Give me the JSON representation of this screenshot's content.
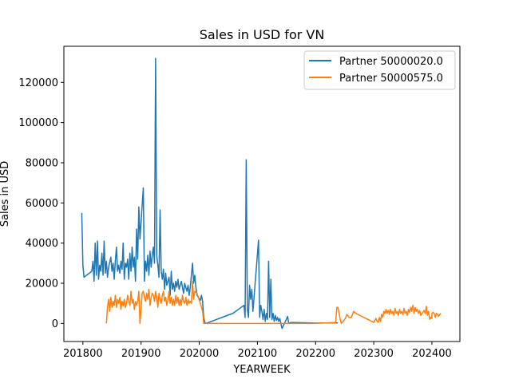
{
  "chart_data": {
    "type": "line",
    "title": "Sales in USD for VN",
    "xlabel": "YEARWEEK",
    "ylabel": "Sales in USD",
    "xlim": [
      201735,
      202425
    ],
    "ylim": [
      -9000,
      138000
    ],
    "xticks": [
      201800,
      201900,
      202000,
      202100,
      202200,
      202300,
      202400
    ],
    "yticks": [
      0,
      20000,
      40000,
      60000,
      80000,
      100000,
      120000
    ],
    "grid": false,
    "legend_position": "top-right",
    "series": [
      {
        "name": "Partner 50000020.0",
        "color": "#1f77b4",
        "points": [
          [
            201751,
            55000
          ],
          [
            201752,
            29000
          ],
          [
            201753,
            23000
          ],
          [
            201808,
            26000
          ],
          [
            201809,
            31000
          ],
          [
            201810,
            21000
          ],
          [
            201811,
            40000
          ],
          [
            201812,
            24000
          ],
          [
            201813,
            41000
          ],
          [
            201814,
            22000
          ],
          [
            201815,
            29000
          ],
          [
            201816,
            26000
          ],
          [
            201817,
            35000
          ],
          [
            201818,
            24000
          ],
          [
            201819,
            41000
          ],
          [
            201820,
            25000
          ],
          [
            201821,
            31000
          ],
          [
            201822,
            23000
          ],
          [
            201823,
            28000
          ],
          [
            201825,
            33000
          ],
          [
            201826,
            26000
          ],
          [
            201827,
            30000
          ],
          [
            201828,
            22000
          ],
          [
            201829,
            31000
          ],
          [
            201830,
            38000
          ],
          [
            201831,
            26000
          ],
          [
            201832,
            29000
          ],
          [
            201833,
            25000
          ],
          [
            201834,
            31000
          ],
          [
            201835,
            27000
          ],
          [
            201836,
            40000
          ],
          [
            201837,
            22000
          ],
          [
            201838,
            30000
          ],
          [
            201839,
            28000
          ],
          [
            201840,
            32000
          ],
          [
            201841,
            22000
          ],
          [
            201842,
            35000
          ],
          [
            201843,
            26000
          ],
          [
            201844,
            38000
          ],
          [
            201845,
            28000
          ],
          [
            201846,
            33000
          ],
          [
            201847,
            21000
          ],
          [
            201848,
            47000
          ],
          [
            201849,
            32000
          ],
          [
            201850,
            58000
          ],
          [
            201851,
            42000
          ],
          [
            201902,
            67500
          ],
          [
            201903,
            21000
          ],
          [
            201904,
            31000
          ],
          [
            201905,
            26000
          ],
          [
            201906,
            34000
          ],
          [
            201907,
            24000
          ],
          [
            201908,
            36000
          ],
          [
            201909,
            28000
          ],
          [
            201910,
            34000
          ],
          [
            201911,
            38000
          ],
          [
            201912,
            30000
          ],
          [
            201913,
            132000
          ],
          [
            201914,
            34000
          ],
          [
            201915,
            29000
          ],
          [
            201916,
            23000
          ],
          [
            201917,
            56500
          ],
          [
            201918,
            26000
          ],
          [
            201919,
            22000
          ],
          [
            201920,
            27000
          ],
          [
            201921,
            17000
          ],
          [
            201922,
            25000
          ],
          [
            201923,
            19000
          ],
          [
            201924,
            21000
          ],
          [
            201925,
            23000
          ],
          [
            201926,
            14000
          ],
          [
            201927,
            26000
          ],
          [
            201928,
            17000
          ],
          [
            201929,
            20000
          ],
          [
            201930,
            16000
          ],
          [
            201931,
            21000
          ],
          [
            201932,
            18000
          ],
          [
            201933,
            22000
          ],
          [
            201934,
            17000
          ],
          [
            201935,
            19000
          ],
          [
            201936,
            21000
          ],
          [
            201937,
            18000
          ],
          [
            201938,
            15000
          ],
          [
            201939,
            20000
          ],
          [
            201940,
            18000
          ],
          [
            201941,
            16000
          ],
          [
            201942,
            19000
          ],
          [
            201943,
            14000
          ],
          [
            201944,
            18000
          ],
          [
            201946,
            30000
          ],
          [
            201947,
            20000
          ],
          [
            201948,
            24000
          ],
          [
            201949,
            18000
          ],
          [
            201950,
            14000
          ],
          [
            202001,
            11500
          ],
          [
            202002,
            14000
          ],
          [
            202003,
            11000
          ],
          [
            202004,
            3000
          ],
          [
            202005,
            500
          ],
          [
            202006,
            0
          ],
          [
            202030,
            5000
          ],
          [
            202040,
            9000
          ],
          [
            202041,
            3000
          ],
          [
            202042,
            81500
          ],
          [
            202043,
            7000
          ],
          [
            202044,
            3000
          ],
          [
            202045,
            19000
          ],
          [
            202046,
            12000
          ],
          [
            202047,
            17000
          ],
          [
            202048,
            6000
          ],
          [
            202101,
            41500
          ],
          [
            202102,
            3000
          ],
          [
            202103,
            9000
          ],
          [
            202104,
            6000
          ],
          [
            202105,
            2000
          ],
          [
            202106,
            7000
          ],
          [
            202107,
            1000
          ],
          [
            202108,
            5000
          ],
          [
            202109,
            2000
          ],
          [
            202110,
            31000
          ],
          [
            202111,
            3000
          ],
          [
            202112,
            22000
          ],
          [
            202113,
            2000
          ],
          [
            202114,
            5000
          ],
          [
            202115,
            1000
          ],
          [
            202116,
            4000
          ],
          [
            202117,
            1500
          ],
          [
            202118,
            3000
          ],
          [
            202119,
            1000
          ],
          [
            202120,
            2500
          ],
          [
            202122,
            -2500
          ],
          [
            202125,
            1000
          ],
          [
            202127,
            3500
          ],
          [
            202128,
            0
          ],
          [
            202130,
            500
          ],
          [
            202200,
            200
          ],
          [
            202220,
            300
          ]
        ]
      },
      {
        "name": "Partner 50000575.0",
        "color": "#ff7f0e",
        "points": [
          [
            201821,
            0
          ],
          [
            201822,
            8000
          ],
          [
            201823,
            12000
          ],
          [
            201824,
            6000
          ],
          [
            201825,
            13000
          ],
          [
            201826,
            8000
          ],
          [
            201827,
            11000
          ],
          [
            201828,
            9000
          ],
          [
            201829,
            14000
          ],
          [
            201830,
            8000
          ],
          [
            201831,
            12000
          ],
          [
            201832,
            10000
          ],
          [
            201833,
            13000
          ],
          [
            201834,
            7000
          ],
          [
            201835,
            11000
          ],
          [
            201836,
            9000
          ],
          [
            201837,
            12000
          ],
          [
            201838,
            8000
          ],
          [
            201839,
            10000
          ],
          [
            201840,
            14000
          ],
          [
            201841,
            11000
          ],
          [
            201842,
            9000
          ],
          [
            201843,
            16000
          ],
          [
            201844,
            10000
          ],
          [
            201845,
            12000
          ],
          [
            201846,
            7000
          ],
          [
            201847,
            11000
          ],
          [
            201848,
            9000
          ],
          [
            201849,
            11000
          ],
          [
            201850,
            16000
          ],
          [
            201851,
            0
          ],
          [
            201901,
            15000
          ],
          [
            201902,
            16000
          ],
          [
            201903,
            13000
          ],
          [
            201904,
            11000
          ],
          [
            201905,
            15000
          ],
          [
            201906,
            12000
          ],
          [
            201907,
            17000
          ],
          [
            201908,
            9000
          ],
          [
            201909,
            13000
          ],
          [
            201910,
            15000
          ],
          [
            201911,
            14000
          ],
          [
            201912,
            11000
          ],
          [
            201913,
            16000
          ],
          [
            201914,
            13000
          ],
          [
            201915,
            8000
          ],
          [
            201916,
            15000
          ],
          [
            201917,
            12000
          ],
          [
            201918,
            10000
          ],
          [
            201919,
            14000
          ],
          [
            201920,
            16000
          ],
          [
            201921,
            11000
          ],
          [
            201922,
            13000
          ],
          [
            201923,
            9000
          ],
          [
            201924,
            12000
          ],
          [
            201925,
            16000
          ],
          [
            201926,
            10000
          ],
          [
            201927,
            13000
          ],
          [
            201928,
            9000
          ],
          [
            201929,
            12000
          ],
          [
            201930,
            9000
          ],
          [
            201931,
            14000
          ],
          [
            201932,
            10000
          ],
          [
            201933,
            13000
          ],
          [
            201934,
            9000
          ],
          [
            201935,
            12000
          ],
          [
            201936,
            9000
          ],
          [
            201937,
            14000
          ],
          [
            201938,
            11000
          ],
          [
            201939,
            10000
          ],
          [
            201940,
            13000
          ],
          [
            201941,
            9000
          ],
          [
            201942,
            12000
          ],
          [
            201943,
            10000
          ],
          [
            201944,
            11000
          ],
          [
            201945,
            10000
          ],
          [
            201946,
            21000
          ],
          [
            201947,
            12000
          ],
          [
            201948,
            16000
          ],
          [
            201950,
            15000
          ],
          [
            202001,
            10000
          ],
          [
            202002,
            8000
          ],
          [
            202003,
            6000
          ],
          [
            202004,
            0
          ],
          [
            202150,
            0
          ],
          [
            202218,
            500
          ],
          [
            202219,
            8000
          ],
          [
            202220,
            8000
          ],
          [
            202221,
            5000
          ],
          [
            202222,
            2000
          ],
          [
            202223,
            0
          ],
          [
            202224,
            500
          ],
          [
            202226,
            2000
          ],
          [
            202227,
            3000
          ],
          [
            202228,
            4500
          ],
          [
            202230,
            3000
          ],
          [
            202232,
            3000
          ],
          [
            202234,
            6000
          ],
          [
            202236,
            5000
          ],
          [
            202300,
            500
          ],
          [
            202302,
            2500
          ],
          [
            202303,
            1000
          ],
          [
            202304,
            500
          ],
          [
            202305,
            3000
          ],
          [
            202306,
            1000
          ],
          [
            202307,
            4500
          ],
          [
            202308,
            3000
          ],
          [
            202309,
            6000
          ],
          [
            202310,
            5000
          ],
          [
            202311,
            7000
          ],
          [
            202312,
            5000
          ],
          [
            202313,
            6500
          ],
          [
            202314,
            4500
          ],
          [
            202315,
            7000
          ],
          [
            202316,
            5000
          ],
          [
            202317,
            6000
          ],
          [
            202318,
            4000
          ],
          [
            202319,
            7500
          ],
          [
            202320,
            5000
          ],
          [
            202321,
            6000
          ],
          [
            202322,
            4000
          ],
          [
            202323,
            7000
          ],
          [
            202324,
            5000
          ],
          [
            202325,
            6000
          ],
          [
            202326,
            4500
          ],
          [
            202327,
            7500
          ],
          [
            202328,
            5000
          ],
          [
            202329,
            6000
          ],
          [
            202330,
            4000
          ],
          [
            202331,
            7000
          ],
          [
            202332,
            5500
          ],
          [
            202333,
            8000
          ],
          [
            202334,
            6000
          ],
          [
            202335,
            9000
          ],
          [
            202336,
            5000
          ],
          [
            202337,
            8000
          ],
          [
            202338,
            6000
          ],
          [
            202339,
            7000
          ],
          [
            202340,
            5000
          ],
          [
            202341,
            6500
          ],
          [
            202342,
            4000
          ],
          [
            202345,
            6500
          ],
          [
            202346,
            5000
          ],
          [
            202347,
            8500
          ],
          [
            202348,
            4000
          ],
          [
            202349,
            6000
          ],
          [
            202350,
            2000
          ],
          [
            202351,
            3000
          ],
          [
            202352,
            2500
          ],
          [
            202400,
            5000
          ],
          [
            202401,
            5500
          ],
          [
            202402,
            5000
          ],
          [
            202403,
            3000
          ],
          [
            202404,
            5000
          ],
          [
            202405,
            4500
          ],
          [
            202406,
            3500
          ],
          [
            202407,
            4500
          ],
          [
            202408,
            5000
          ]
        ]
      }
    ]
  }
}
